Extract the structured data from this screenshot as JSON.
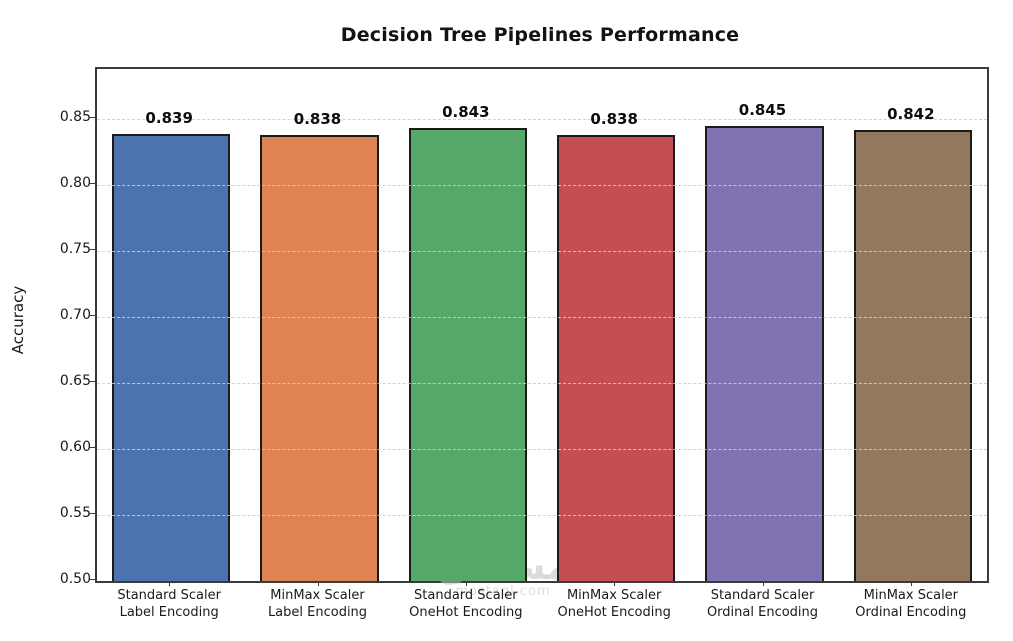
{
  "chart_data": {
    "type": "bar",
    "title": "Decision Tree Pipelines Performance",
    "xlabel": "",
    "ylabel": "Accuracy",
    "ylim": [
      0.5,
      0.888
    ],
    "yticks": [
      0.5,
      0.55,
      0.6,
      0.65,
      0.7,
      0.75,
      0.8,
      0.85
    ],
    "grid": {
      "axis": "y",
      "style": "dashed",
      "on": true
    },
    "legend_position": "none",
    "categories": [
      "Standard Scaler\nLabel Encoding",
      "MinMax Scaler\nLabel Encoding",
      "Standard Scaler\nOneHot Encoding",
      "MinMax Scaler\nOneHot Encoding",
      "Standard Scaler\nOrdinal Encoding",
      "MinMax Scaler\nOrdinal Encoding"
    ],
    "values": [
      0.839,
      0.838,
      0.843,
      0.838,
      0.845,
      0.842
    ],
    "value_labels": [
      "0.839",
      "0.838",
      "0.843",
      "0.838",
      "0.845",
      "0.842"
    ],
    "bar_colors": [
      "#4C72B0",
      "#DD8452",
      "#55A868",
      "#C44E52",
      "#8172B3",
      "#937860"
    ],
    "bar_edge_color": "#1a1a1a"
  },
  "watermark": {
    "text_arabic": "مستقل",
    "text_latin": "mostaql.com"
  }
}
